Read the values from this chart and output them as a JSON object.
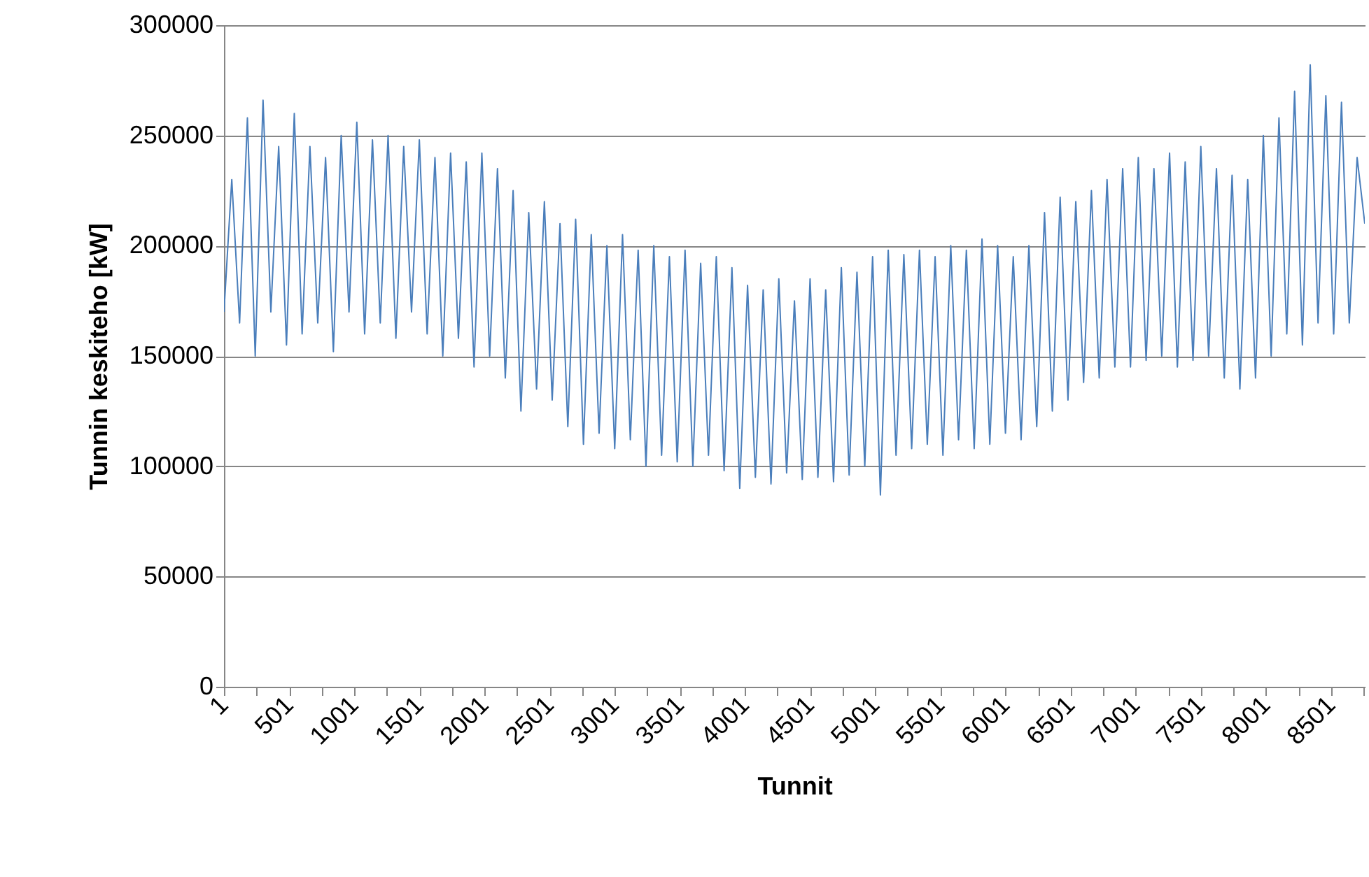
{
  "chart_data": {
    "type": "line",
    "xlabel": "Tunnit",
    "ylabel": "Tunnin keskiteho [kW]",
    "x": [
      1,
      61,
      121,
      181,
      241,
      301,
      361,
      421,
      481,
      541,
      601,
      661,
      721,
      781,
      841,
      901,
      961,
      1021,
      1081,
      1141,
      1201,
      1261,
      1321,
      1381,
      1441,
      1501,
      1561,
      1621,
      1681,
      1741,
      1801,
      1861,
      1921,
      1981,
      2041,
      2101,
      2161,
      2221,
      2281,
      2341,
      2401,
      2461,
      2521,
      2581,
      2641,
      2701,
      2761,
      2821,
      2881,
      2941,
      3001,
      3061,
      3121,
      3181,
      3241,
      3301,
      3361,
      3421,
      3481,
      3541,
      3601,
      3661,
      3721,
      3781,
      3841,
      3901,
      3961,
      4021,
      4081,
      4141,
      4201,
      4261,
      4321,
      4381,
      4441,
      4501,
      4561,
      4621,
      4681,
      4741,
      4801,
      4861,
      4921,
      4981,
      5041,
      5101,
      5161,
      5221,
      5281,
      5341,
      5401,
      5461,
      5521,
      5581,
      5641,
      5701,
      5761,
      5821,
      5881,
      5941,
      6001,
      6061,
      6121,
      6181,
      6241,
      6301,
      6361,
      6421,
      6481,
      6541,
      6601,
      6661,
      6721,
      6781,
      6841,
      6901,
      6961,
      7021,
      7081,
      7141,
      7201,
      7261,
      7321,
      7381,
      7441,
      7501,
      7561,
      7621,
      7681,
      7741,
      7801,
      7861,
      7921,
      7981,
      8041,
      8101,
      8161,
      8221,
      8281,
      8341,
      8401,
      8461,
      8521,
      8581,
      8641,
      8701,
      8760
    ],
    "series": [
      {
        "color": "#4a7ebb",
        "values": [
          170000,
          230000,
          165000,
          258000,
          150000,
          266000,
          170000,
          245000,
          155000,
          260000,
          160000,
          245000,
          165000,
          240000,
          152000,
          250000,
          170000,
          256000,
          160000,
          248000,
          165000,
          250000,
          158000,
          245000,
          170000,
          248000,
          160000,
          240000,
          150000,
          242000,
          158000,
          238000,
          145000,
          242000,
          150000,
          235000,
          140000,
          225000,
          125000,
          215000,
          135000,
          220000,
          130000,
          210000,
          118000,
          212000,
          110000,
          205000,
          115000,
          200000,
          108000,
          205000,
          112000,
          198000,
          100000,
          200000,
          105000,
          195000,
          102000,
          198000,
          100000,
          192000,
          105000,
          195000,
          98000,
          190000,
          90000,
          182000,
          95000,
          180000,
          92000,
          185000,
          97000,
          175000,
          94000,
          185000,
          95000,
          180000,
          93000,
          190000,
          96000,
          188000,
          100000,
          195000,
          87000,
          198000,
          105000,
          196000,
          108000,
          198000,
          110000,
          195000,
          105000,
          200000,
          112000,
          198000,
          108000,
          203000,
          110000,
          200000,
          115000,
          195000,
          112000,
          200000,
          118000,
          215000,
          125000,
          222000,
          130000,
          220000,
          138000,
          225000,
          140000,
          230000,
          145000,
          235000,
          145000,
          240000,
          148000,
          235000,
          150000,
          242000,
          145000,
          238000,
          148000,
          245000,
          150000,
          235000,
          140000,
          232000,
          135000,
          230000,
          140000,
          250000,
          150000,
          258000,
          160000,
          270000,
          155000,
          282000,
          165000,
          268000,
          160000,
          265000,
          165000,
          240000,
          210000
        ]
      }
    ],
    "xlim": [
      1,
      8760
    ],
    "xticks": [
      1,
      {
        "value": 251,
        "label": null
      },
      501,
      {
        "value": 751,
        "label": null
      },
      1001,
      {
        "value": 1251,
        "label": null
      },
      1501,
      {
        "value": 1751,
        "label": null
      },
      2001,
      {
        "value": 2251,
        "label": null
      },
      2501,
      {
        "value": 2751,
        "label": null
      },
      3001,
      {
        "value": 3251,
        "label": null
      },
      3501,
      {
        "value": 3751,
        "label": null
      },
      4001,
      {
        "value": 4251,
        "label": null
      },
      4501,
      {
        "value": 4751,
        "label": null
      },
      5001,
      {
        "value": 5251,
        "label": null
      },
      5501,
      {
        "value": 5751,
        "label": null
      },
      6001,
      {
        "value": 6251,
        "label": null
      },
      6501,
      {
        "value": 6751,
        "label": null
      },
      7001,
      {
        "value": 7251,
        "label": null
      },
      7501,
      {
        "value": 7751,
        "label": null
      },
      8001,
      {
        "value": 8251,
        "label": null
      },
      8501,
      {
        "value": 8751,
        "label": null
      }
    ],
    "ylim": [
      0,
      300000
    ],
    "yticks": [
      0,
      50000,
      100000,
      150000,
      200000,
      250000,
      300000
    ],
    "grid": "y",
    "marker": "none",
    "line_style": "solid"
  }
}
